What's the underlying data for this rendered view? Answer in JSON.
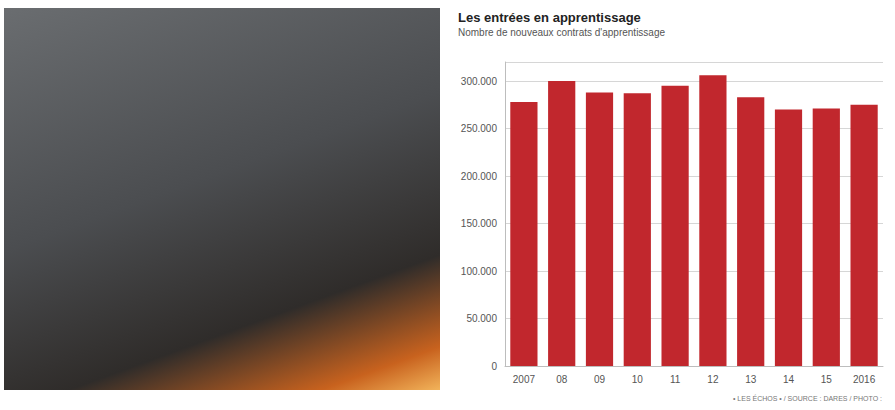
{
  "chart_data": {
    "type": "bar",
    "title": "Les entrées en apprentissage",
    "subtitle": "Nombre de nouveaux contrats d'apprentissage",
    "annotations": [
      "• LES ÉCHOS • / SOURCE : DARES / PHOTO :"
    ],
    "categories": [
      "2007",
      "08",
      "09",
      "10",
      "11",
      "12",
      "13",
      "14",
      "15",
      "2016"
    ],
    "values": [
      278000,
      300000,
      288000,
      287000,
      295000,
      306000,
      283000,
      270000,
      271000,
      275000
    ],
    "color": "#c1272d",
    "ylim": [
      0,
      320000
    ],
    "yticks": [
      0,
      {
        "value": 50000,
        "label": "50.000"
      },
      {
        "value": 100000,
        "label": "100.000"
      },
      {
        "value": 150000,
        "label": "150.000"
      },
      {
        "value": 200000,
        "label": "200.000"
      },
      {
        "value": 250000,
        "label": "250.000"
      },
      {
        "value": 300000,
        "label": "300.000"
      }
    ],
    "grid": true
  }
}
